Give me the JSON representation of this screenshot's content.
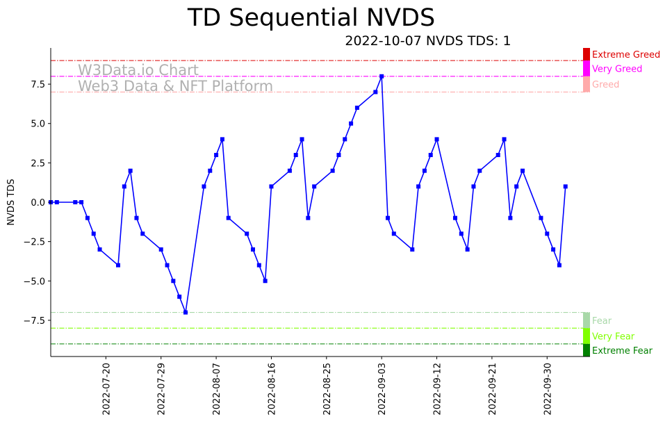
{
  "title": "TD Sequential NVDS",
  "chart_data": {
    "type": "line",
    "title": "TD Sequential NVDS",
    "subtitle": "2022-10-07 NVDS TDS: 1",
    "ylabel": "NVDS TDS",
    "xlabel": "",
    "xlim": [
      "2022-07-11",
      "2022-10-07"
    ],
    "ylim": [
      -9.8,
      9.8
    ],
    "x_ticks": [
      "2022-07-20",
      "2022-07-29",
      "2022-08-07",
      "2022-08-16",
      "2022-08-25",
      "2022-09-03",
      "2022-09-12",
      "2022-09-21",
      "2022-09-30"
    ],
    "y_ticks": [
      "−7.5",
      "−5.0",
      "−2.5",
      "0.0",
      "2.5",
      "5.0",
      "7.5"
    ],
    "y_tick_values": [
      -7.5,
      -5.0,
      -2.5,
      0.0,
      2.5,
      5.0,
      7.5
    ],
    "watermark": [
      "W3Data.io Chart",
      "Web3 Data & NFT Platform"
    ],
    "series": [
      {
        "color": "#0000ff",
        "marker": "square",
        "points": [
          [
            "2022-07-11",
            0
          ],
          [
            "2022-07-12",
            0
          ],
          [
            "2022-07-15",
            0
          ],
          [
            "2022-07-16",
            0
          ],
          [
            "2022-07-17",
            -1
          ],
          [
            "2022-07-18",
            -2
          ],
          [
            "2022-07-19",
            -3
          ],
          [
            "2022-07-22",
            -4
          ],
          [
            "2022-07-23",
            1
          ],
          [
            "2022-07-24",
            2
          ],
          [
            "2022-07-25",
            -1
          ],
          [
            "2022-07-26",
            -2
          ],
          [
            "2022-07-29",
            -3
          ],
          [
            "2022-07-30",
            -4
          ],
          [
            "2022-07-31",
            -5
          ],
          [
            "2022-08-01",
            -6
          ],
          [
            "2022-08-02",
            -7
          ],
          [
            "2022-08-05",
            1
          ],
          [
            "2022-08-06",
            2
          ],
          [
            "2022-08-07",
            3
          ],
          [
            "2022-08-08",
            4
          ],
          [
            "2022-08-09",
            -1
          ],
          [
            "2022-08-12",
            -2
          ],
          [
            "2022-08-13",
            -3
          ],
          [
            "2022-08-14",
            -4
          ],
          [
            "2022-08-15",
            -5
          ],
          [
            "2022-08-16",
            1
          ],
          [
            "2022-08-19",
            2
          ],
          [
            "2022-08-20",
            3
          ],
          [
            "2022-08-21",
            4
          ],
          [
            "2022-08-22",
            -1
          ],
          [
            "2022-08-23",
            1
          ],
          [
            "2022-08-26",
            2
          ],
          [
            "2022-08-27",
            3
          ],
          [
            "2022-08-28",
            4
          ],
          [
            "2022-08-29",
            5
          ],
          [
            "2022-08-30",
            6
          ],
          [
            "2022-09-02",
            7
          ],
          [
            "2022-09-03",
            8
          ],
          [
            "2022-09-04",
            -1
          ],
          [
            "2022-09-05",
            -2
          ],
          [
            "2022-09-08",
            -3
          ],
          [
            "2022-09-09",
            1
          ],
          [
            "2022-09-10",
            2
          ],
          [
            "2022-09-11",
            3
          ],
          [
            "2022-09-12",
            4
          ],
          [
            "2022-09-15",
            -1
          ],
          [
            "2022-09-16",
            -2
          ],
          [
            "2022-09-17",
            -3
          ],
          [
            "2022-09-18",
            1
          ],
          [
            "2022-09-19",
            2
          ],
          [
            "2022-09-22",
            3
          ],
          [
            "2022-09-23",
            4
          ],
          [
            "2022-09-24",
            -1
          ],
          [
            "2022-09-25",
            1
          ],
          [
            "2022-09-26",
            2
          ],
          [
            "2022-09-29",
            -1
          ],
          [
            "2022-09-30",
            -2
          ],
          [
            "2022-10-01",
            -3
          ],
          [
            "2022-10-02",
            -4
          ],
          [
            "2022-10-03",
            1
          ]
        ]
      }
    ],
    "zones": [
      {
        "label": "Extreme Greed",
        "value": 9,
        "color": "#dd0000",
        "band": [
          9,
          9.8
        ]
      },
      {
        "label": "Very Greed",
        "value": 8,
        "color": "#ff00ff",
        "band": [
          8,
          9
        ]
      },
      {
        "label": "Greed",
        "value": 7,
        "color": "#ffaaaa",
        "band": [
          7,
          8
        ]
      },
      {
        "label": "Fear",
        "value": -7,
        "color": "#a8d8a8",
        "band": [
          -8,
          -7
        ]
      },
      {
        "label": "Very Fear",
        "value": -8,
        "color": "#80ff00",
        "band": [
          -9,
          -8
        ]
      },
      {
        "label": "Extreme Fear",
        "value": -9,
        "color": "#008000",
        "band": [
          -9.8,
          -9
        ]
      }
    ]
  }
}
